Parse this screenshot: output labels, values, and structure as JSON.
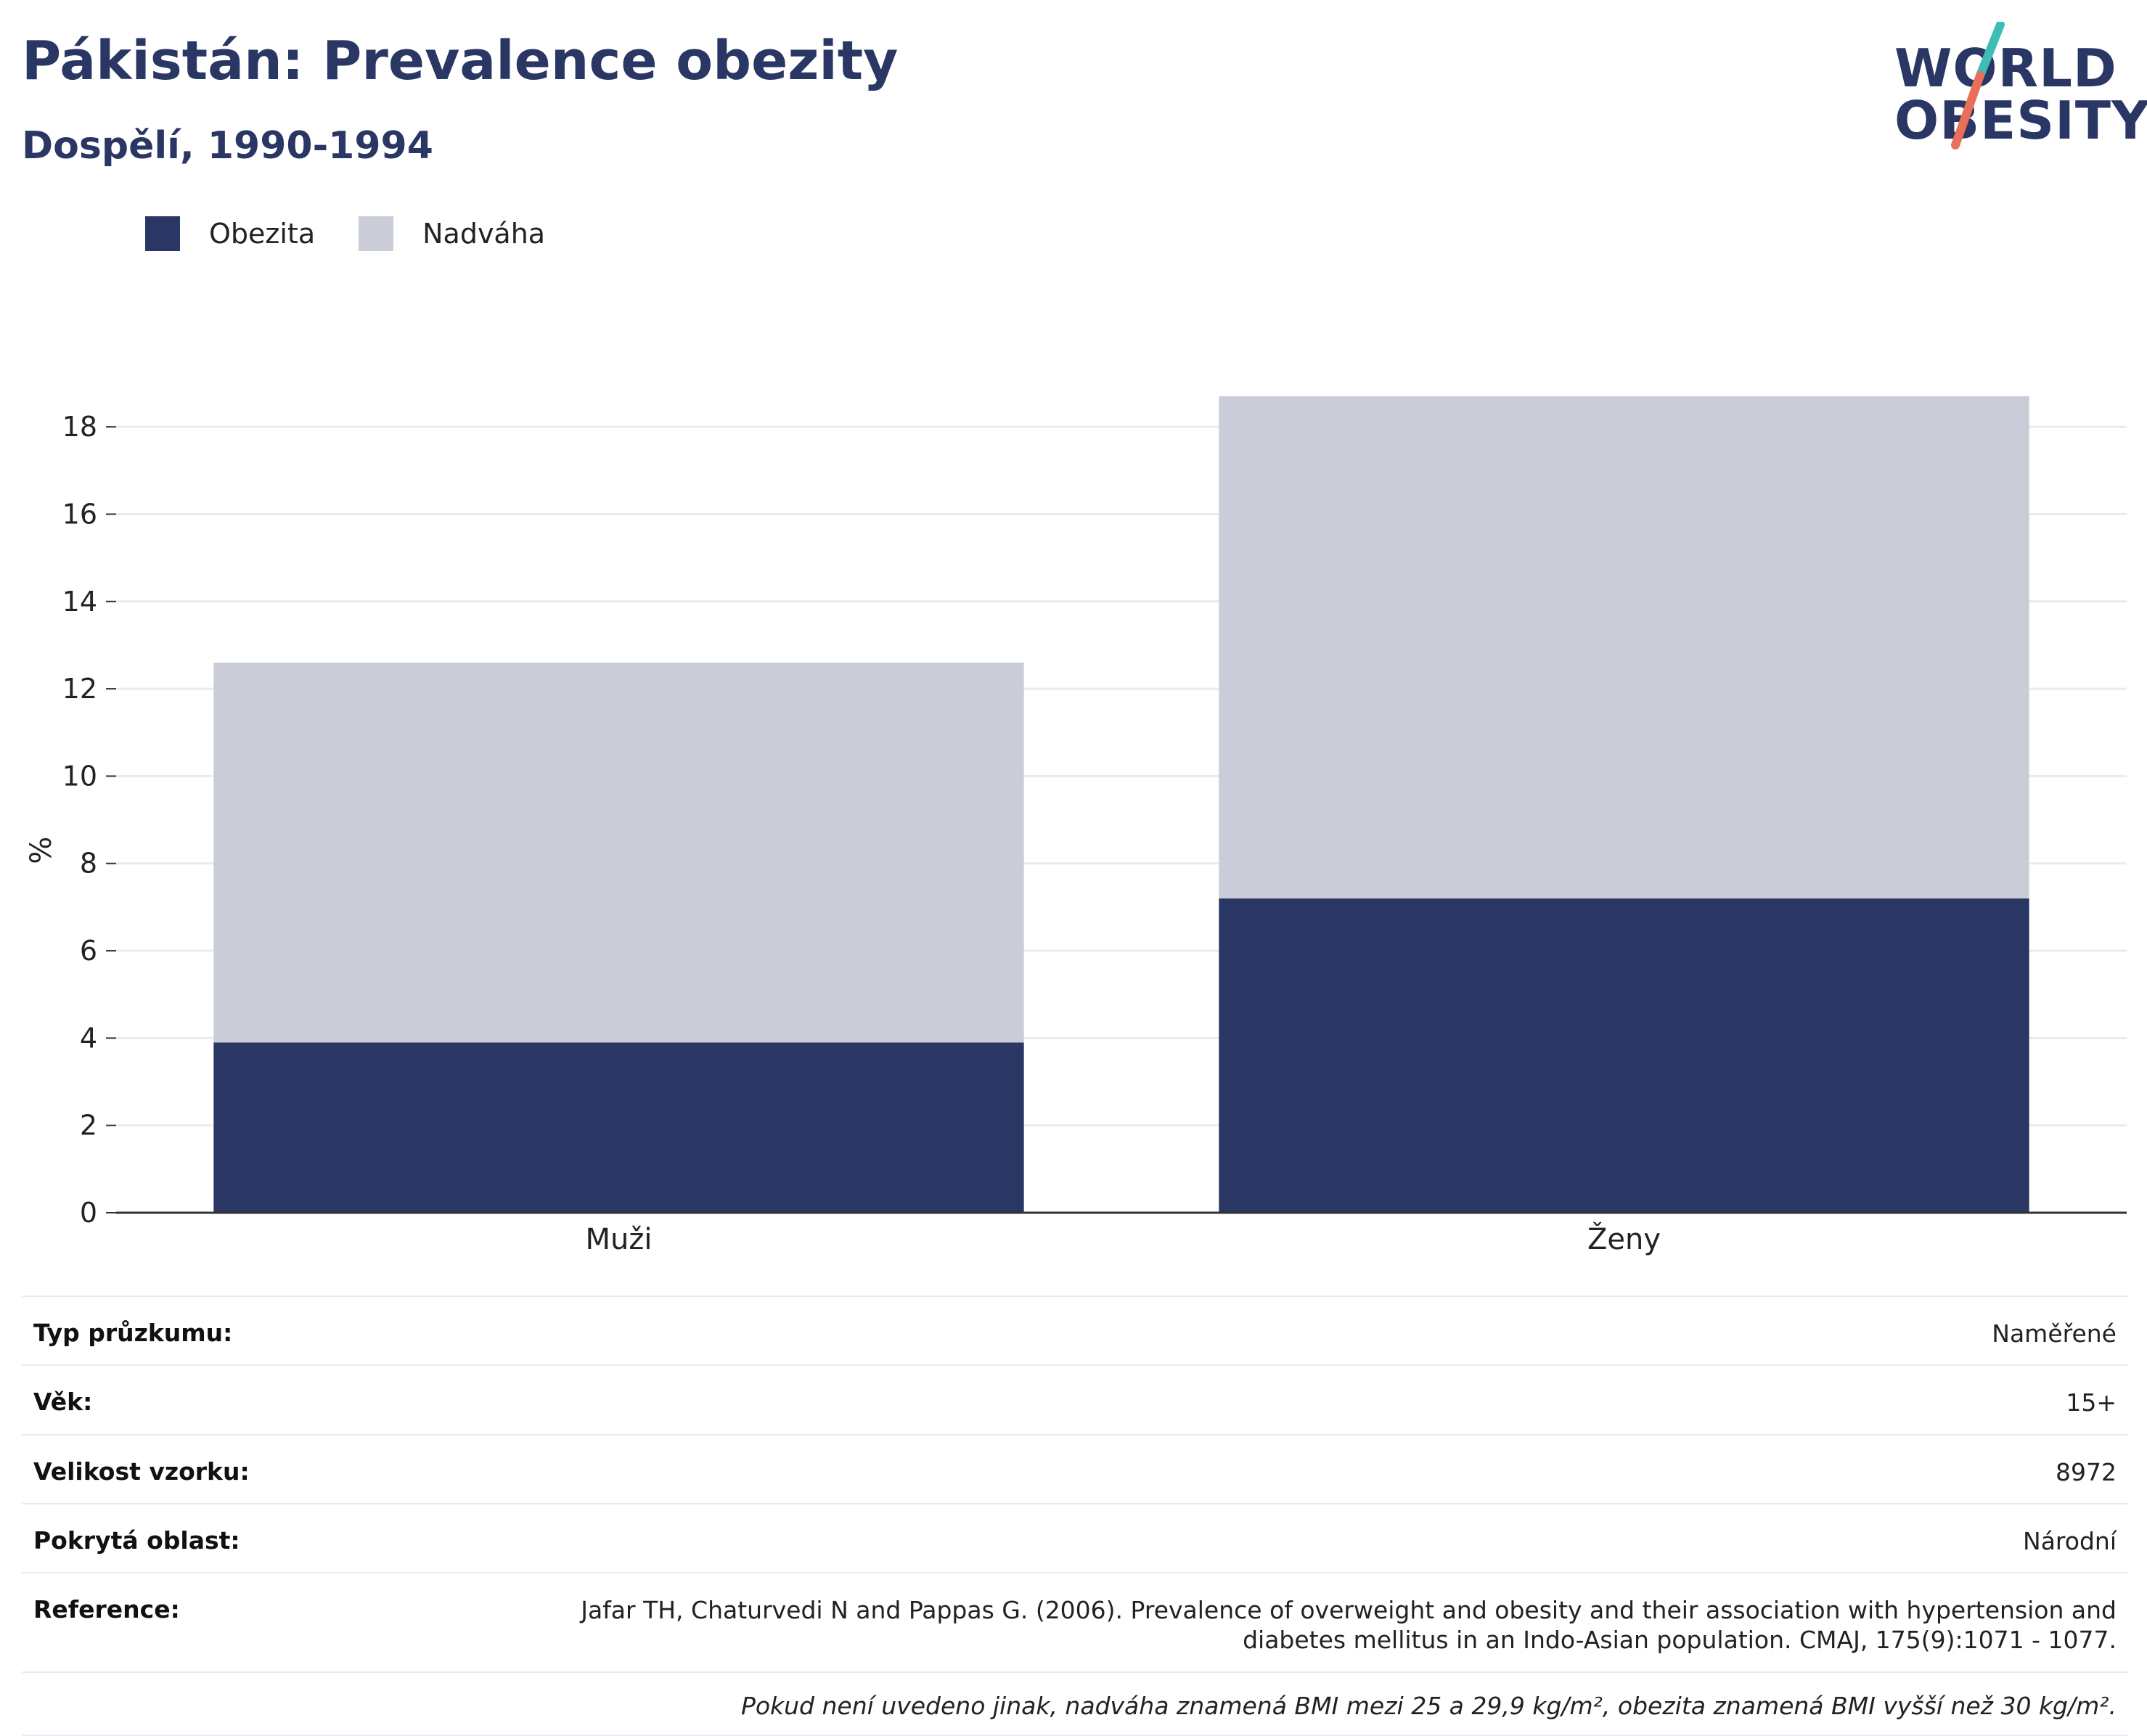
{
  "header": {
    "title": "Pákistán: Prevalence obezity",
    "subtitle": "Dospělí, 1990-1994"
  },
  "logo": {
    "line1": "WORLD",
    "line2": "OBESITY"
  },
  "colors": {
    "obesity": "#2a3663",
    "overweight": "#cacdd8",
    "title": "#2a3663",
    "logo_teal": "#3dbdb5",
    "logo_coral": "#e8705a",
    "grid": "#e8ecf1",
    "axis": "#333333"
  },
  "legend": [
    {
      "label": "Obezita",
      "color": "#2a3663"
    },
    {
      "label": "Nadváha",
      "color": "#cacdd8"
    }
  ],
  "chart_data": {
    "type": "bar",
    "stacked": true,
    "categories": [
      "Muži",
      "Ženy"
    ],
    "series": [
      {
        "name": "Obezita",
        "values": [
          3.9,
          7.2
        ]
      },
      {
        "name": "Nadváha",
        "values": [
          8.7,
          11.5
        ]
      }
    ],
    "ylabel": "%",
    "xlabel": "",
    "ylim": [
      0,
      18.8
    ],
    "yticks": [
      0,
      2,
      4,
      6,
      8,
      10,
      12,
      14,
      16,
      18
    ],
    "grid": true,
    "legend_position": "top-left"
  },
  "info_table": [
    {
      "label": "Typ průzkumu:",
      "value": "Naměřené"
    },
    {
      "label": "Věk:",
      "value": "15+"
    },
    {
      "label": "Velikost vzorku:",
      "value": "8972"
    },
    {
      "label": "Pokrytá oblast:",
      "value": "Národní"
    },
    {
      "label": "Reference:",
      "value": "Jafar TH, Chaturvedi N and Pappas G. (2006). Prevalence of overweight and obesity and their association with hypertension and diabetes mellitus in an Indo-Asian population. CMAJ, 175(9):1071 - 1077."
    }
  ],
  "footnote": "Pokud není uvedeno jinak, nadváha znamená BMI mezi 25 a 29,9 kg/m², obezita znamená BMI vyšší než 30 kg/m²."
}
